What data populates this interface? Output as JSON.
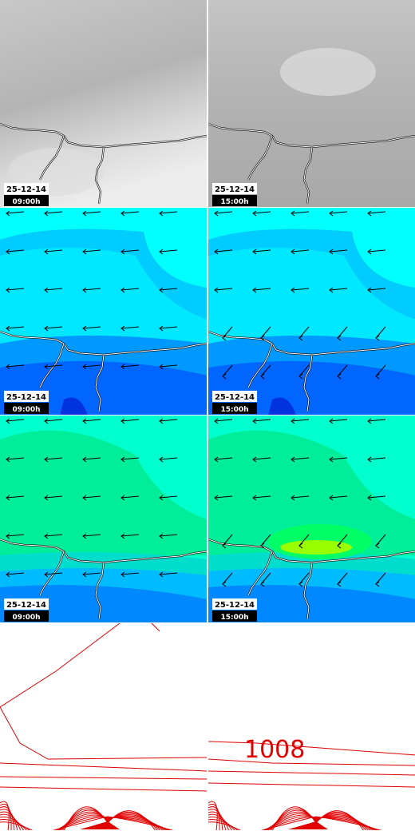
{
  "rows": [
    {
      "panels": [
        {
          "date": "25-12-14",
          "time": "09:00h"
        },
        {
          "date": "25-12-14",
          "time": "15:00h"
        }
      ]
    },
    {
      "panels": [
        {
          "date": "25-12-14",
          "time": "09:00h"
        },
        {
          "date": "25-12-14",
          "time": "15:00h"
        }
      ]
    },
    {
      "panels": [
        {
          "date": "25-12-14",
          "time": "09:00h"
        },
        {
          "date": "25-12-14",
          "time": "15:00h"
        }
      ]
    }
  ],
  "pressure": {
    "contour_label": "1008"
  }
}
